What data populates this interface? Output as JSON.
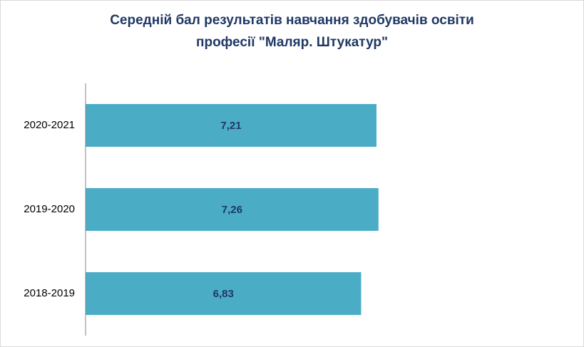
{
  "chart_data": {
    "type": "bar",
    "orientation": "horizontal",
    "title": "Середній бал результатів навчання здобувачів освіти\nпрофесії \"Маляр. Штукатур\"",
    "categories": [
      "2020-2021",
      "2019-2020",
      "2018-2019"
    ],
    "values": [
      7.21,
      7.26,
      6.83
    ],
    "value_labels": [
      "7,21",
      "7,26",
      "6,83"
    ],
    "color": "#4bacc6",
    "xlim": [
      0,
      12
    ]
  }
}
